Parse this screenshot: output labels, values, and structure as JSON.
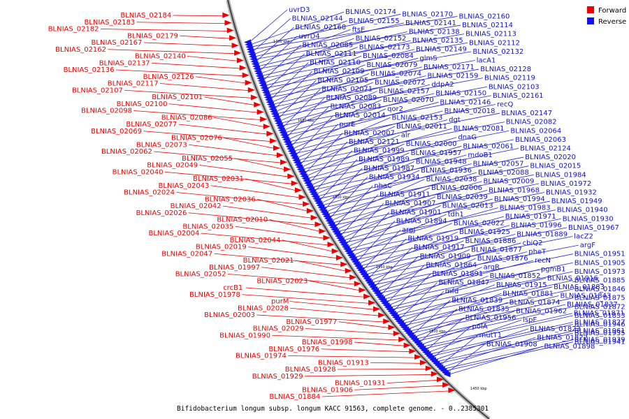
{
  "caption": "Bifidobacterium longum subsp. longum KACC 91563, complete genome. - 0..2385301",
  "legend": [
    {
      "label": "Forward",
      "color": "#ee0000"
    },
    {
      "label": "Reverse",
      "color": "#1111ee"
    }
  ],
  "ticks": [
    "1700 kbp",
    "1650 kbp",
    "1600 kbp",
    "1550 kbp",
    "1500 kbp",
    "1450 kbp"
  ],
  "forward_labels": [
    "BLNIAS_02184",
    "BLNIAS_02183",
    "BLNIAS_02182",
    "BLNIAS_02179",
    "BLNIAS_02167",
    "BLNIAS_02162",
    "BLNIAS_02140",
    "BLNIAS_02137",
    "BLNIAS_02136",
    "BLNIAS_02126",
    "BLNIAS_02117",
    "BLNIAS_02107",
    "BLNIAS_02101",
    "BLNIAS_02100",
    "BLNIAS_02098",
    "BLNIAS_02086",
    "BLNIAS_02077",
    "BLNIAS_02069",
    "BLNIAS_02076",
    "BLNIAS_02073",
    "BLNIAS_02062",
    "BLNIAS_02055",
    "BLNIAS_02049",
    "BLNIAS_02040",
    "BLNIAS_02031",
    "BLNIAS_02043",
    "BLNIAS_02024",
    "BLNIAS_02036",
    "BLNIAS_02042",
    "BLNIAS_02026",
    "BLNIAS_02010",
    "BLNIAS_02035",
    "BLNIAS_02004",
    "BLNIAS_02044",
    "BLNIAS_02019",
    "BLNIAS_02047",
    "BLNIAS_02021",
    "BLNIAS_01997",
    "BLNIAS_02052",
    "BLNIAS_02023",
    "crcB1",
    "BLNIAS_01978",
    "purM",
    "BLNIAS_02028",
    "BLNIAS_02003",
    "BLNIAS_01977",
    "BLNIAS_02029",
    "BLNIAS_01990",
    "BLNIAS_01998",
    "BLNIAS_01976",
    "BLNIAS_01974",
    "BLNIAS_01913",
    "BLNIAS_01928",
    "BLNIAS_01929",
    "BLNIAS_01931",
    "BLNIAS_01906",
    "BLNIAS_01884"
  ],
  "reverse_labels": [
    "uvrD3",
    "BLNIAS_02174",
    "BLNIAS_02170",
    "BLNIAS_02160",
    "BLNIAS_02144",
    "BLNIAS_02155",
    "BLNIAS_02141",
    "BLNIAS_02114",
    "BLNIAS_02168",
    "ftsE",
    "BLNIAS_02138",
    "BLNIAS_02113",
    "uvrD4",
    "BLNIAS_02152",
    "BLNIAS_02135",
    "BLNIAS_02112",
    "BLNIAS_02085",
    "BLNIAS_02173",
    "BLNIAS_02149",
    "BLNIAS_02132",
    "BLNIAS_02111",
    "BLNIAS_02084",
    "glmS",
    "lacA1",
    "BLNIAS_02110",
    "BLNIAS_02079",
    "BLNIAS_02171",
    "BLNIAS_02128",
    "BLNIAS_02109",
    "BLNIAS_02074",
    "BLNIAS_02159",
    "BLNIAS_02119",
    "BLNIAS_02105",
    "BLNIAS_02072",
    "ddpA2",
    "BLNIAS_02103",
    "BLNIAS_02071",
    "BLNIAS_02157",
    "BLNIAS_02150",
    "BLNIAS_02161",
    "BLNIAS_02089",
    "BLNIAS_02070",
    "BLNIAS_02146",
    "recQ",
    "BLNIAS_02083",
    "qor2",
    "BLNIAS_02018",
    "BLNIAS_02147",
    "BLNIAS_02014",
    "BLNIAS_02153",
    "dgt",
    "BLNIAS_02082",
    "purE",
    "BLNIAS_02011",
    "BLNIAS_02081",
    "BLNIAS_02064",
    "BLNIAS_02007",
    "alr",
    "dnaG",
    "BLNIAS_02063",
    "BLNIAS_02121",
    "BLNIAS_02000",
    "BLNIAS_02061",
    "BLNIAS_02124",
    "BLNIAS_01999",
    "BLNIAS_01957",
    "mdoB1",
    "BLNIAS_02020",
    "BLNIAS_01989",
    "BLNIAS_01948",
    "BLNIAS_02057",
    "BLNIAS_02015",
    "BLNIAS_01987",
    "BLNIAS_01936",
    "BLNIAS_02088",
    "BLNIAS_01984",
    "BLNIAS_01934",
    "BLNIAS_02038",
    "BLNIAS_02009",
    "BLNIAS_01972",
    "nhaC",
    "BLNIAS_02006",
    "BLNIAS_01968",
    "BLNIAS_01932",
    "BLNIAS_01911",
    "BLNIAS_02039",
    "BLNIAS_01994",
    "BLNIAS_01949",
    "BLNIAS_01907",
    "BLNIAS_02013",
    "BLNIAS_01983",
    "BLNIAS_01940",
    "BLNIAS_01901",
    "tdh1",
    "BLNIAS_01971",
    "BLNIAS_01930",
    "BLNIAS_01894",
    "BLNIAS_02022",
    "BLNIAS_01996",
    "BLNIAS_01967",
    "argJ",
    "BLNIAS_01925",
    "BLNIAS_01889",
    "lacZ2",
    "BLNIAS_01919",
    "BLNIAS_01886",
    "cbiQ2",
    "argF",
    "BLNIAS_01917",
    "BLNIAS_01877",
    "pheT",
    "BLNIAS_01951",
    "BLNIAS_01909",
    "BLNIAS_01876",
    "recN",
    "BLNIAS_01905",
    "BLNIAS_01864",
    "argR",
    "pgmB1",
    "BLNIAS_01973",
    "BLNIAS_01891",
    "BLNIAS_01852",
    "BLNIAS_01916",
    "BLNIAS_01885",
    "BLNIAS_01847",
    "BLNIAS_01915",
    "BLNIAS_01883",
    "BLNIAS_01846",
    "mfd",
    "BLNIAS_01881",
    "BLNIAS_01843",
    "BLNIAS_01875",
    "BLNIAS_01839",
    "BLNIAS_01874",
    "BLNIAS_01837",
    "BLNIAS_01872",
    "BLNIAS_01835",
    "BLNIAS_01962",
    "BLNIAS_01871",
    "BLNIAS_01833",
    "BLNIAS_01956",
    "ispF",
    "BLNIAS_01827",
    "BLNIAS_01946",
    "polA",
    "BLNIAS_01823",
    "BLNIAS_01961",
    "BLNIAS_01935",
    "mutT1",
    "BLNIAS_01822",
    "BLNIAS_01939",
    "BLNIAS_01941",
    "BLNIAS_01908",
    "BLNIAS_01898"
  ]
}
